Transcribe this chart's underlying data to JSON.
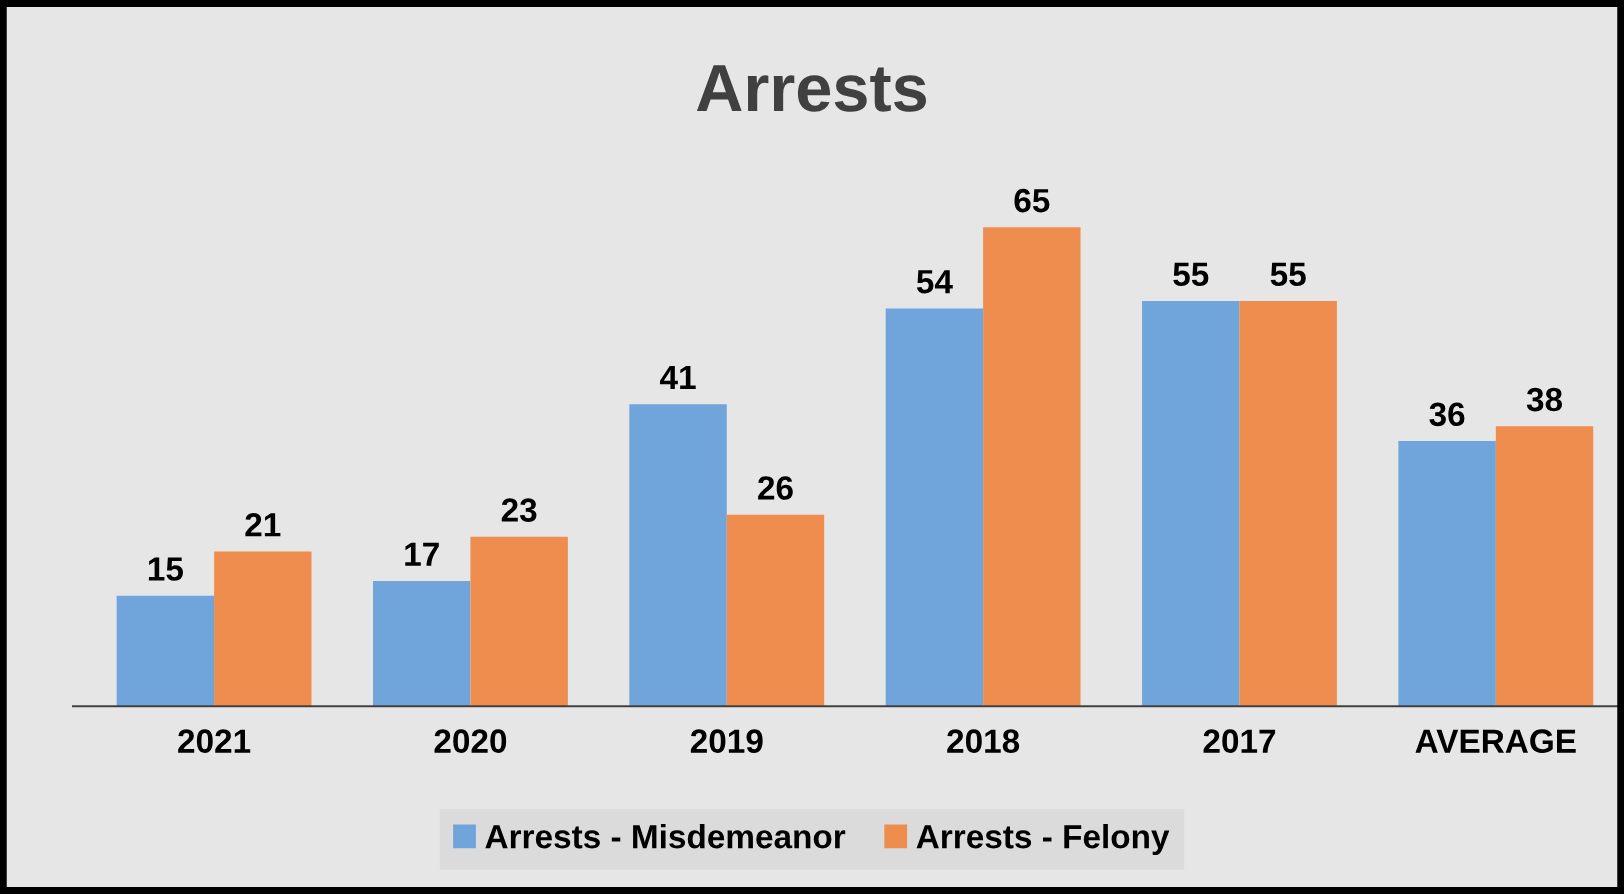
{
  "chart_data": {
    "type": "bar",
    "title": "Arrests",
    "categories": [
      "2021",
      "2020",
      "2019",
      "2018",
      "2017",
      "AVERAGE"
    ],
    "series": [
      {
        "name": "Arrests - Misdemeanor",
        "color": "#6fa5da",
        "values": [
          15,
          17,
          41,
          54,
          55,
          36
        ]
      },
      {
        "name": "Arrests - Felony",
        "color": "#ee8d4d",
        "values": [
          21,
          23,
          26,
          65,
          55,
          38
        ]
      }
    ],
    "data_labels": true,
    "legend": "bottom",
    "grid": false,
    "tick_labels": "x"
  }
}
